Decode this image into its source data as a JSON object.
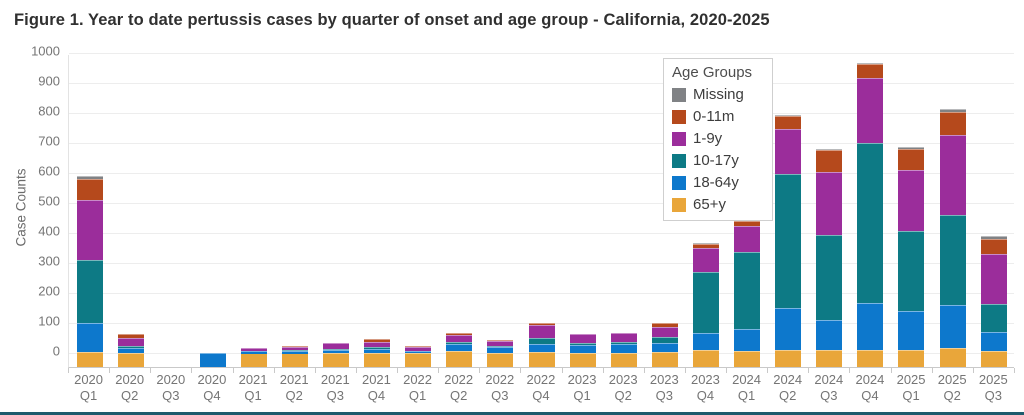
{
  "title": "Figure 1. Year to date pertussis cases by quarter of onset and age group - California, 2020-2025",
  "footer_rule_color": "#1e5b6d",
  "chart_data": {
    "type": "bar",
    "stacked": true,
    "title": "Figure 1. Year to date pertussis cases by quarter of onset and age group - California, 2020-2025",
    "xlabel": "",
    "ylabel": "Case Counts",
    "ylim": [
      0,
      1000
    ],
    "ytick_step": 100,
    "grid": true,
    "legend": {
      "title": "Age Groups",
      "position": "top-right"
    },
    "categories": [
      {
        "year": "2020",
        "quarter": "Q1"
      },
      {
        "year": "2020",
        "quarter": "Q2"
      },
      {
        "year": "2020",
        "quarter": "Q3"
      },
      {
        "year": "2020",
        "quarter": "Q4"
      },
      {
        "year": "2021",
        "quarter": "Q1"
      },
      {
        "year": "2021",
        "quarter": "Q2"
      },
      {
        "year": "2021",
        "quarter": "Q3"
      },
      {
        "year": "2021",
        "quarter": "Q4"
      },
      {
        "year": "2022",
        "quarter": "Q1"
      },
      {
        "year": "2022",
        "quarter": "Q2"
      },
      {
        "year": "2022",
        "quarter": "Q3"
      },
      {
        "year": "2022",
        "quarter": "Q4"
      },
      {
        "year": "2023",
        "quarter": "Q1"
      },
      {
        "year": "2023",
        "quarter": "Q2"
      },
      {
        "year": "2023",
        "quarter": "Q3"
      },
      {
        "year": "2023",
        "quarter": "Q4"
      },
      {
        "year": "2024",
        "quarter": "Q1"
      },
      {
        "year": "2024",
        "quarter": "Q2"
      },
      {
        "year": "2024",
        "quarter": "Q3"
      },
      {
        "year": "2024",
        "quarter": "Q4"
      },
      {
        "year": "2025",
        "quarter": "Q1"
      },
      {
        "year": "2025",
        "quarter": "Q2"
      },
      {
        "year": "2025",
        "quarter": "Q3"
      }
    ],
    "series": [
      {
        "name": "65+y",
        "color": "#e9a63a",
        "values": [
          8,
          2,
          0,
          0,
          1,
          1,
          2,
          3,
          2,
          10,
          4,
          6,
          5,
          5,
          8,
          12,
          10,
          15,
          15,
          15,
          15,
          20,
          10
        ]
      },
      {
        "name": "18-64y",
        "color": "#0d78cc",
        "values": [
          95,
          18,
          0,
          5,
          8,
          10,
          12,
          15,
          8,
          25,
          18,
          26,
          25,
          30,
          28,
          58,
          75,
          140,
          98,
          155,
          130,
          145,
          63
        ]
      },
      {
        "name": "10-17y",
        "color": "#0d7a85",
        "values": [
          210,
          8,
          0,
          0,
          0,
          2,
          2,
          5,
          0,
          6,
          4,
          22,
          8,
          5,
          20,
          205,
          255,
          445,
          285,
          535,
          265,
          300,
          95
        ]
      },
      {
        "name": "1-9y",
        "color": "#9b2d9b",
        "values": [
          200,
          27,
          0,
          0,
          10,
          12,
          20,
          18,
          15,
          22,
          18,
          42,
          30,
          30,
          35,
          78,
          88,
          150,
          210,
          215,
          205,
          265,
          165
        ]
      },
      {
        "name": "0-11m",
        "color": "#b5491c",
        "values": [
          72,
          12,
          0,
          0,
          0,
          1,
          2,
          8,
          2,
          8,
          2,
          9,
          0,
          0,
          12,
          15,
          15,
          42,
          72,
          48,
          70,
          78,
          52
        ]
      },
      {
        "name": "Missing",
        "color": "#808285",
        "values": [
          10,
          0,
          0,
          0,
          0,
          0,
          0,
          0,
          0,
          0,
          0,
          0,
          0,
          0,
          2,
          2,
          2,
          5,
          5,
          2,
          5,
          10,
          8
        ]
      }
    ],
    "legend_order_top_to_bottom": [
      "Missing",
      "0-11m",
      "1-9y",
      "10-17y",
      "18-64y",
      "65+y"
    ]
  }
}
